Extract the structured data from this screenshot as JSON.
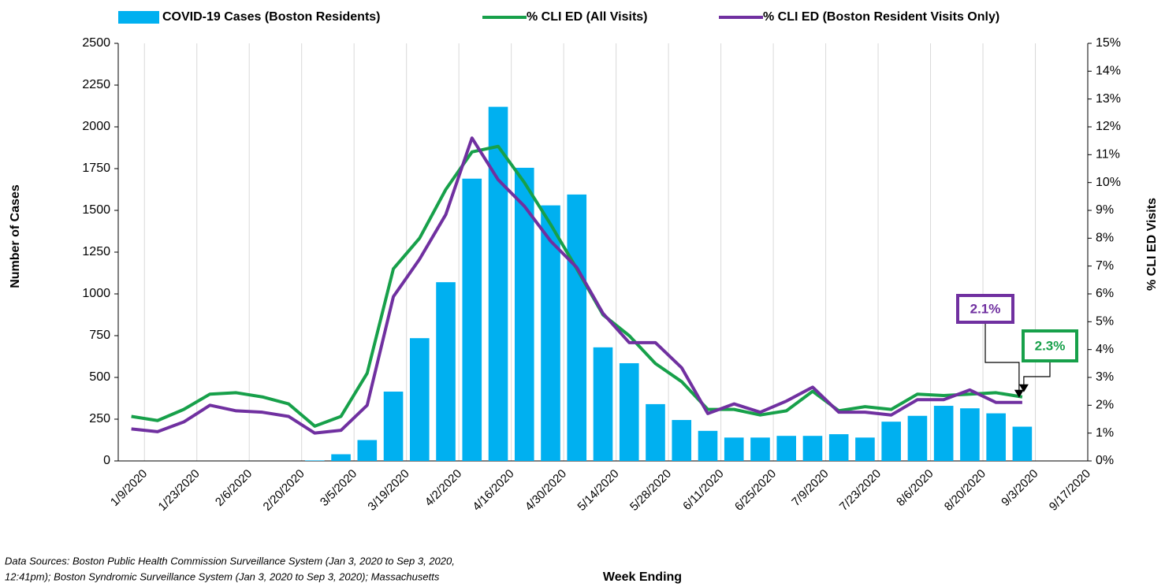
{
  "chart_data": {
    "type": "bar_line",
    "x_label": "Week Ending",
    "y_label": "Number of Cases",
    "y2_label": "% CLI ED Visits",
    "note": [
      "Data Sources: Boston Public Health Commission Surveillance System (Jan 3, 2020 to Sep 3, 2020,",
      "12:41pm);  Boston Syndromic Surveillance System (Jan 3, 2020 to Sep 3, 2020); Massachusetts"
    ],
    "categories": [
      "1/9/2020",
      null,
      "1/23/2020",
      null,
      "2/6/2020",
      null,
      "2/20/2020",
      null,
      "3/5/2020",
      null,
      "3/19/2020",
      null,
      "4/2/2020",
      null,
      "4/16/2020",
      null,
      "4/30/2020",
      null,
      "5/14/2020",
      null,
      "5/28/2020",
      null,
      "6/11/2020",
      null,
      "6/25/2020",
      null,
      "7/9/2020",
      null,
      "7/23/2020",
      null,
      "8/6/2020",
      null,
      "8/20/2020",
      null,
      "9/3/2020",
      null,
      "9/17/2020"
    ],
    "series": [
      {
        "name": "COVID-19 Cases (Boston Residents)",
        "kind": "bar",
        "color": "#00b0f0",
        "values": [
          0,
          0,
          0,
          0,
          0,
          0,
          0,
          3,
          40,
          125,
          415,
          735,
          1070,
          1690,
          2120,
          1755,
          1530,
          1595,
          680,
          585,
          340,
          245,
          180,
          140,
          140,
          150,
          150,
          160,
          140,
          235,
          270,
          330,
          315,
          285,
          205,
          null,
          null
        ]
      },
      {
        "name": "% CLI ED (All Visits)",
        "kind": "line",
        "axis": "y2",
        "color": "#17a04a",
        "values": [
          1.6,
          1.45,
          1.85,
          2.4,
          2.45,
          2.3,
          2.05,
          1.25,
          1.6,
          3.15,
          6.9,
          8.0,
          9.75,
          11.1,
          11.3,
          10.0,
          8.5,
          6.9,
          5.25,
          4.5,
          3.5,
          2.85,
          1.85,
          1.85,
          1.65,
          1.8,
          2.5,
          1.8,
          1.95,
          1.85,
          2.4,
          2.35,
          2.4,
          2.45,
          2.3,
          null,
          null
        ]
      },
      {
        "name": "% CLI ED (Boston Resident Visits Only)",
        "kind": "line",
        "axis": "y2",
        "color": "#7030a0",
        "values": [
          1.15,
          1.05,
          1.4,
          2.0,
          1.8,
          1.75,
          1.6,
          1.0,
          1.1,
          2.0,
          5.9,
          7.25,
          8.85,
          11.6,
          10.1,
          9.15,
          7.9,
          6.95,
          5.3,
          4.25,
          4.25,
          3.35,
          1.7,
          2.05,
          1.75,
          2.15,
          2.65,
          1.75,
          1.75,
          1.65,
          2.2,
          2.2,
          2.55,
          2.1,
          2.1,
          null,
          null
        ]
      }
    ],
    "annotations": [
      {
        "text": "2.1%",
        "series": 2
      },
      {
        "text": "2.3%",
        "series": 1
      }
    ],
    "ylim": [
      0,
      2500
    ],
    "yticks": [
      0,
      250,
      500,
      750,
      1000,
      1250,
      1500,
      1750,
      2000,
      2250,
      2500
    ],
    "y2lim": [
      0,
      15
    ],
    "y2ticks": [
      {
        "value": 0,
        "label": "0%"
      },
      {
        "value": 1,
        "label": "1%"
      },
      {
        "value": 2,
        "label": "2%"
      },
      {
        "value": 3,
        "label": "3%"
      },
      {
        "value": 4,
        "label": "4%"
      },
      {
        "value": 5,
        "label": "5%"
      },
      {
        "value": 6,
        "label": "6%"
      },
      {
        "value": 7,
        "label": "7%"
      },
      {
        "value": 8,
        "label": "8%"
      },
      {
        "value": 9,
        "label": "9%"
      },
      {
        "value": 10,
        "label": "10%"
      },
      {
        "value": 11,
        "label": "11%"
      },
      {
        "value": 12,
        "label": "12%"
      },
      {
        "value": 13,
        "label": "13%"
      },
      {
        "value": 14,
        "label": "14%"
      },
      {
        "value": 15,
        "label": "15%"
      }
    ],
    "grid": "x"
  }
}
